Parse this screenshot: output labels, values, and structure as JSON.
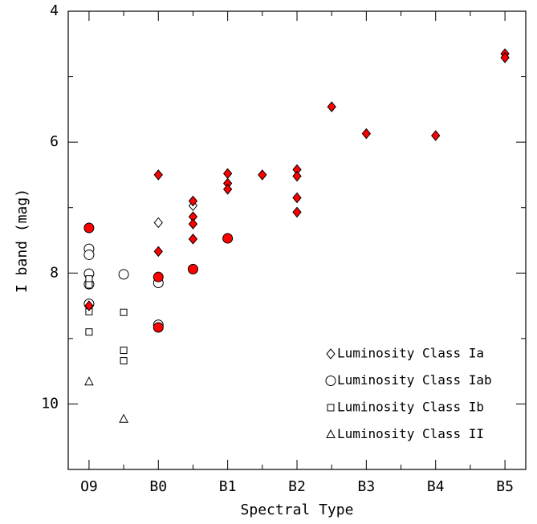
{
  "chart_data": {
    "type": "scatter",
    "xlabel": "Spectral Type",
    "ylabel": "I band (mag)",
    "xlim": [
      -0.3,
      6.3
    ],
    "xticks": [
      {
        "value": 0,
        "label": "O9"
      },
      {
        "value": 1,
        "label": "B0"
      },
      {
        "value": 2,
        "label": "B1"
      },
      {
        "value": 3,
        "label": "B2"
      },
      {
        "value": 4,
        "label": "B3"
      },
      {
        "value": 5,
        "label": "B4"
      },
      {
        "value": 6,
        "label": "B5"
      }
    ],
    "xminorticks": [
      0.5,
      1.5,
      2.5,
      3.5,
      4.5,
      5.5
    ],
    "ylim": [
      11,
      4
    ],
    "yticks": [
      4,
      6,
      8,
      10
    ],
    "yminorticks": [
      5,
      7,
      9,
      11
    ],
    "legend": "lower right",
    "series": [
      {
        "name": "Luminosity Class Ia",
        "marker": "diamond",
        "color": "#ffffff",
        "x": [
          1,
          1.5
        ],
        "values": [
          7.23,
          6.97
        ]
      },
      {
        "name": "Luminosity Class Iab",
        "marker": "circle",
        "color": "#ffffff",
        "x": [
          0,
          0,
          0,
          0,
          0,
          0.5,
          1,
          1
        ],
        "values": [
          7.63,
          7.72,
          8.01,
          8.17,
          8.47,
          8.02,
          8.15,
          8.79
        ]
      },
      {
        "name": "Luminosity Class Ib",
        "marker": "square",
        "color": "#ffffff",
        "x": [
          0,
          0,
          0,
          0,
          0.5,
          0.5,
          0.5
        ],
        "values": [
          8.09,
          8.18,
          8.59,
          8.9,
          8.6,
          9.18,
          9.34
        ]
      },
      {
        "name": "Luminosity Class II",
        "marker": "triangle",
        "color": "#ffffff",
        "x": [
          0,
          0.5
        ],
        "values": [
          9.66,
          10.23
        ]
      },
      {
        "marker": "circle",
        "color": "#ff0000",
        "x": [
          0,
          1,
          1,
          1.5,
          2
        ],
        "values": [
          7.31,
          8.06,
          8.83,
          7.94,
          7.47
        ]
      },
      {
        "marker": "diamond",
        "color": "#ff0000",
        "x": [
          0,
          1,
          1,
          1.5,
          1.5,
          1.5,
          1.5,
          2,
          2,
          2,
          2.5,
          3,
          3,
          3,
          3,
          3.5,
          4,
          5,
          6,
          6
        ],
        "values": [
          8.5,
          6.5,
          7.67,
          6.9,
          7.14,
          7.25,
          7.48,
          6.48,
          6.63,
          6.72,
          6.5,
          6.42,
          6.52,
          6.85,
          7.07,
          5.46,
          5.87,
          5.9,
          4.65,
          4.71
        ]
      }
    ]
  }
}
